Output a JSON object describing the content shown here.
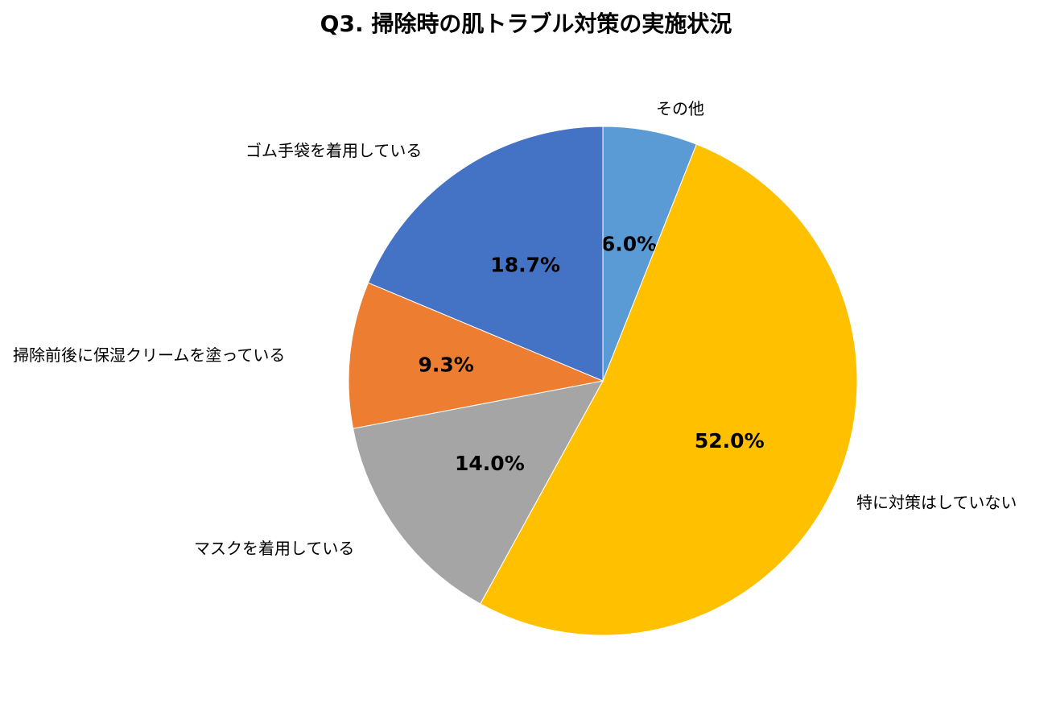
{
  "chart_data": {
    "type": "pie",
    "title": "Q3. 掃除時の肌トラブル対策の実施状況",
    "start_angle_deg": 0,
    "direction": "clockwise",
    "slices": [
      {
        "label": "その他",
        "value": 6.0,
        "display": "6.0%",
        "color": "#5B9BD5"
      },
      {
        "label": "特に対策はしていない",
        "value": 52.0,
        "display": "52.0%",
        "color": "#FFC000"
      },
      {
        "label": "マスクを着用している",
        "value": 14.0,
        "display": "14.0%",
        "color": "#A5A5A5"
      },
      {
        "label": "掃除前後に保湿クリームを塗っている",
        "value": 9.3,
        "display": "9.3%",
        "color": "#ED7D31"
      },
      {
        "label": "ゴム手袋を着用している",
        "value": 18.7,
        "display": "18.7%",
        "color": "#4472C4"
      }
    ],
    "legend": "none (category labels placed outside slices)"
  },
  "labels": {
    "title": "Q3. 掃除時の肌トラブル対策の実施状況",
    "cat0": "その他",
    "cat1": "特に対策はしていない",
    "cat2": "マスクを着用している",
    "cat3": "掃除前後に保湿クリームを塗っている",
    "cat4": "ゴム手袋を着用している"
  }
}
